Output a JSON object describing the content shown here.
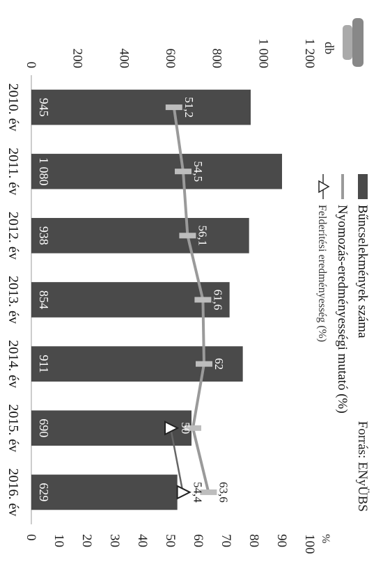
{
  "chart_data": {
    "type": "bar",
    "orientation": "rotated-90-cw",
    "title": "",
    "source": "Forrás: ENyÜBS",
    "categories": [
      "2010. év",
      "2011. év",
      "2012. év",
      "2013. év",
      "2014. év",
      "2015. év",
      "2016. év"
    ],
    "series": [
      {
        "name": "Bűncselekmények száma",
        "type": "bar",
        "axis": "left",
        "values": [
          945,
          1080,
          938,
          854,
          911,
          690,
          629
        ],
        "color": "#4a4a4a"
      },
      {
        "name": "Nyomozás-eredményességi mutató (%)",
        "type": "line",
        "axis": "right",
        "values": [
          51.2,
          54.5,
          56.1,
          61.6,
          62,
          58,
          63.6
        ],
        "color": "#9a9a9a"
      },
      {
        "name": "Felderítési eredményesség (%)",
        "type": "line",
        "axis": "right",
        "values": [
          null,
          null,
          null,
          null,
          null,
          50,
          54.4
        ],
        "color": "#666666"
      }
    ],
    "left_axis": {
      "unit": "db",
      "ylim": [
        0,
        1200
      ],
      "ticks": [
        "0",
        "200",
        "400",
        "600",
        "800",
        "1 000",
        "1 200"
      ],
      "tick_values": [
        0,
        200,
        400,
        600,
        800,
        1000,
        1200
      ]
    },
    "right_axis": {
      "unit": "%",
      "ylim": [
        0,
        100
      ],
      "ticks": [
        "0",
        "10",
        "20",
        "30",
        "40",
        "50",
        "60",
        "70",
        "80",
        "90",
        "100"
      ],
      "tick_values": [
        0,
        10,
        20,
        30,
        40,
        50,
        60,
        70,
        80,
        90,
        100
      ]
    },
    "bar_labels": [
      "945",
      "1 080",
      "938",
      "854",
      "911",
      "690",
      "629"
    ],
    "line_labels": [
      "51,2",
      "54,5",
      "56,1",
      "61,6",
      "62",
      "",
      "63,6"
    ],
    "line2_labels": [
      "",
      "",
      "",
      "",
      "",
      "50",
      "54,4"
    ],
    "legend": {
      "placement": "top",
      "items": [
        "Bűncselekmények száma",
        "Nyomozás-eredményességi mutató (%)",
        "Felderítési eredményesség (%)"
      ]
    },
    "grid": false
  }
}
